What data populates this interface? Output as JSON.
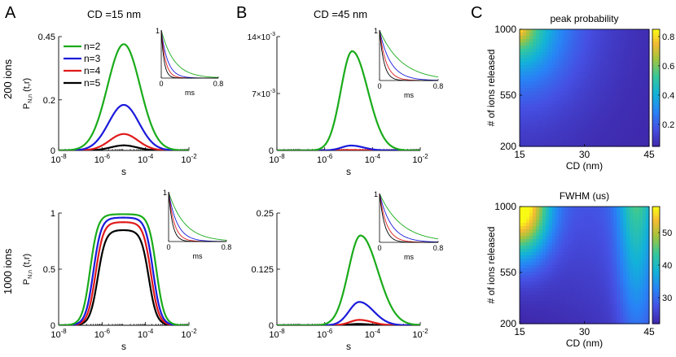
{
  "panels": {
    "A": "A",
    "B": "B",
    "C": "C"
  },
  "row_labels": [
    "200 ions",
    "1000 ions"
  ],
  "column_titles": [
    "CD =15 nm",
    "CD =45 nm"
  ],
  "colors": {
    "n2": "#1aab1a",
    "n3": "#1a1adb",
    "n4": "#e01a1a",
    "n5": "#000000"
  },
  "chart_data": [
    {
      "id": "A_top",
      "type": "line",
      "title": "CD =15 nm",
      "xlabel": "s",
      "ylabel": "P N,n (t,r)",
      "ylabel_main": "P",
      "ylabel_sub": "N,n",
      "ylabel_arg": "(t,r)",
      "xscale": "log",
      "xlim": [
        1e-08,
        0.01
      ],
      "ylim": [
        0,
        0.45
      ],
      "xticks": [
        {
          "v": -8,
          "label": "10",
          "exp": "-8"
        },
        {
          "v": -6,
          "label": "10",
          "exp": "-6"
        },
        {
          "v": -4,
          "label": "10",
          "exp": "-4"
        },
        {
          "v": -2,
          "label": "10",
          "exp": "-2"
        }
      ],
      "yticks": [
        {
          "v": 0,
          "label": "0"
        },
        {
          "v": 0.2,
          "label": "0.2"
        },
        {
          "v": 0.45,
          "label": "0.45"
        }
      ],
      "legend": [
        "n=2",
        "n=3",
        "n=4",
        "n=5"
      ],
      "legend_position": "top-left",
      "series": [
        {
          "name": "n=2",
          "color_key": "n2",
          "peak": 0.42,
          "center": -5.0,
          "width": 0.75
        },
        {
          "name": "n=3",
          "color_key": "n3",
          "peak": 0.18,
          "center": -5.0,
          "width": 0.7
        },
        {
          "name": "n=4",
          "color_key": "n4",
          "peak": 0.065,
          "center": -5.0,
          "width": 0.65
        },
        {
          "name": "n=5",
          "color_key": "n5",
          "peak": 0.02,
          "center": -5.0,
          "width": 0.6
        }
      ],
      "inset": {
        "xlabel": "ms",
        "xticks": [
          {
            "v": 0,
            "label": "0"
          },
          {
            "v": 0.8,
            "label": "0.8"
          }
        ],
        "yticks": [
          {
            "v": 1,
            "label": "1"
          }
        ],
        "decays": [
          {
            "color_key": "n2",
            "tau": 0.18
          },
          {
            "color_key": "n3",
            "tau": 0.09
          },
          {
            "color_key": "n4",
            "tau": 0.06
          },
          {
            "color_key": "n5",
            "tau": 0.04
          }
        ]
      }
    },
    {
      "id": "B_top",
      "type": "line",
      "title": "CD =45 nm",
      "xlabel": "s",
      "xscale": "log",
      "xlim": [
        1e-08,
        0.01
      ],
      "ylim": [
        0,
        0.014
      ],
      "xticks": [
        {
          "v": -8,
          "label": "10",
          "exp": "-8"
        },
        {
          "v": -6,
          "label": "10",
          "exp": "-6"
        },
        {
          "v": -4,
          "label": "10",
          "exp": "-4"
        },
        {
          "v": -2,
          "label": "10",
          "exp": "-2"
        }
      ],
      "yticks": [
        {
          "v": 0,
          "label": "0"
        },
        {
          "v": 0.007,
          "label": "7×10",
          "exp": "-3"
        },
        {
          "v": 0.014,
          "label": "14×10",
          "exp": "-3"
        }
      ],
      "series": [
        {
          "name": "n=2",
          "color_key": "n2",
          "peak": 0.0122,
          "center": -4.85,
          "width": 0.55,
          "skew": 0.55
        },
        {
          "name": "n=3",
          "color_key": "n3",
          "peak": 0.0006,
          "center": -4.9,
          "width": 0.45,
          "skew": 0.5
        },
        {
          "name": "n=4",
          "color_key": "n4",
          "peak": 5e-05,
          "center": -4.9,
          "width": 0.4,
          "skew": 0.5
        },
        {
          "name": "n=5",
          "color_key": "n5",
          "peak": 1e-05,
          "center": -4.9,
          "width": 0.4,
          "skew": 0.5
        }
      ],
      "inset": {
        "xlabel": "ms",
        "xticks": [
          {
            "v": 0,
            "label": "0"
          },
          {
            "v": 0.8,
            "label": "0.8"
          }
        ],
        "yticks": [
          {
            "v": 1,
            "label": "1"
          }
        ],
        "decays": [
          {
            "color_key": "n2",
            "tau": 0.3
          },
          {
            "color_key": "n3",
            "tau": 0.15
          },
          {
            "color_key": "n4",
            "tau": 0.09
          },
          {
            "color_key": "n5",
            "tau": 0.06
          }
        ]
      }
    },
    {
      "id": "A_bottom",
      "type": "line",
      "xlabel": "s",
      "ylabel": "P N,n (t,r)",
      "ylabel_main": "P",
      "ylabel_sub": "N,n",
      "ylabel_arg": "(t,r)",
      "xscale": "log",
      "xlim": [
        1e-08,
        0.01
      ],
      "ylim": [
        0,
        1
      ],
      "xticks": [
        {
          "v": -8,
          "label": "10",
          "exp": "-8"
        },
        {
          "v": -6,
          "label": "10",
          "exp": "-6"
        },
        {
          "v": -4,
          "label": "10",
          "exp": "-4"
        },
        {
          "v": -2,
          "label": "10",
          "exp": "-2"
        }
      ],
      "yticks": [
        {
          "v": 0,
          "label": "0"
        },
        {
          "v": 0.5,
          "label": "0.5"
        },
        {
          "v": 1,
          "label": "1"
        }
      ],
      "series": [
        {
          "name": "n=2",
          "color_key": "n2",
          "plateau": 0.99,
          "rise": -6.55,
          "fall": -3.5
        },
        {
          "name": "n=3",
          "color_key": "n3",
          "plateau": 0.96,
          "rise": -6.4,
          "fall": -3.65
        },
        {
          "name": "n=4",
          "color_key": "n4",
          "plateau": 0.92,
          "rise": -6.3,
          "fall": -3.75
        },
        {
          "name": "n=5",
          "color_key": "n5",
          "plateau": 0.85,
          "rise": -6.2,
          "fall": -3.85
        }
      ],
      "inset": {
        "xlabel": "ms",
        "xticks": [
          {
            "v": 0,
            "label": "0"
          },
          {
            "v": 0.8,
            "label": "0.8"
          }
        ],
        "yticks": [
          {
            "v": 1,
            "label": "1"
          }
        ],
        "decays": [
          {
            "color_key": "n2",
            "tau": 0.22
          },
          {
            "color_key": "n3",
            "tau": 0.12
          },
          {
            "color_key": "n4",
            "tau": 0.08
          },
          {
            "color_key": "n5",
            "tau": 0.055
          }
        ]
      }
    },
    {
      "id": "B_bottom",
      "type": "line",
      "xlabel": "s",
      "xscale": "log",
      "xlim": [
        1e-08,
        0.01
      ],
      "ylim": [
        0,
        0.25
      ],
      "xticks": [
        {
          "v": -8,
          "label": "10",
          "exp": "-8"
        },
        {
          "v": -6,
          "label": "10",
          "exp": "-6"
        },
        {
          "v": -4,
          "label": "10",
          "exp": "-4"
        },
        {
          "v": -2,
          "label": "10",
          "exp": "-2"
        }
      ],
      "yticks": [
        {
          "v": 0,
          "label": "0"
        },
        {
          "v": 0.125,
          "label": "0.125"
        },
        {
          "v": 0.25,
          "label": "0.25"
        }
      ],
      "series": [
        {
          "name": "n=2",
          "color_key": "n2",
          "peak": 0.2,
          "center": -4.5,
          "width": 0.6,
          "skew": 0.6
        },
        {
          "name": "n=3",
          "color_key": "n3",
          "peak": 0.052,
          "center": -4.55,
          "width": 0.5,
          "skew": 0.55
        },
        {
          "name": "n=4",
          "color_key": "n4",
          "peak": 0.012,
          "center": -4.55,
          "width": 0.45,
          "skew": 0.5
        },
        {
          "name": "n=5",
          "color_key": "n5",
          "peak": 0.003,
          "center": -4.6,
          "width": 0.4,
          "skew": 0.5
        }
      ],
      "inset": {
        "xlabel": "ms",
        "xticks": [
          {
            "v": 0,
            "label": "0"
          },
          {
            "v": 0.8,
            "label": "0.8"
          }
        ],
        "yticks": [
          {
            "v": 1,
            "label": "1"
          }
        ],
        "decays": [
          {
            "color_key": "n2",
            "tau": 0.3
          },
          {
            "color_key": "n3",
            "tau": 0.16
          },
          {
            "color_key": "n4",
            "tau": 0.1
          },
          {
            "color_key": "n5",
            "tau": 0.07
          }
        ]
      }
    },
    {
      "id": "C_top",
      "type": "heatmap",
      "title": "peak probability",
      "xlabel": "CD (nm)",
      "ylabel": "# of ions released",
      "xlim": [
        15,
        45
      ],
      "ylim": [
        200,
        1000
      ],
      "xticks": [
        {
          "v": 15,
          "label": "15"
        },
        {
          "v": 30,
          "label": "30"
        },
        {
          "v": 45,
          "label": "45"
        }
      ],
      "yticks": [
        {
          "v": 200,
          "label": "200"
        },
        {
          "v": 550,
          "label": "550"
        },
        {
          "v": 1000,
          "label": "1000"
        }
      ],
      "colorbar": {
        "min": 0.05,
        "max": 0.85,
        "ticks": [
          {
            "v": 0.2,
            "label": "0.2"
          },
          {
            "v": 0.4,
            "label": "0.4"
          },
          {
            "v": 0.6,
            "label": "0.6"
          },
          {
            "v": 0.8,
            "label": "0.8"
          }
        ]
      }
    },
    {
      "id": "C_bottom",
      "type": "heatmap",
      "title": "FWHM (us)",
      "xlabel": "CD (nm)",
      "ylabel": "# of ions released",
      "xlim": [
        15,
        45
      ],
      "ylim": [
        200,
        1000
      ],
      "xticks": [
        {
          "v": 15,
          "label": "15"
        },
        {
          "v": 30,
          "label": "30"
        },
        {
          "v": 45,
          "label": "45"
        }
      ],
      "yticks": [
        {
          "v": 200,
          "label": "200"
        },
        {
          "v": 550,
          "label": "550"
        },
        {
          "v": 1000,
          "label": "1000"
        }
      ],
      "colorbar": {
        "min": 22,
        "max": 58,
        "ticks": [
          {
            "v": 30,
            "label": "30"
          },
          {
            "v": 40,
            "label": "40"
          },
          {
            "v": 50,
            "label": "50"
          }
        ]
      }
    }
  ]
}
